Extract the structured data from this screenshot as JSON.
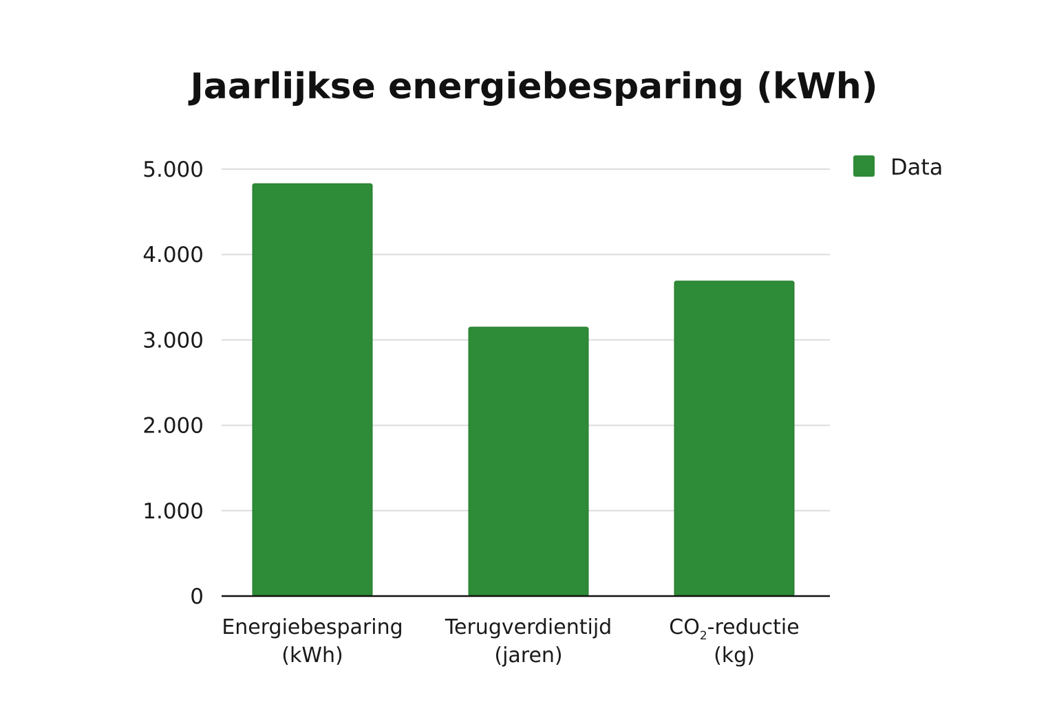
{
  "chart_data": {
    "type": "bar",
    "title": "Jaarlijkse energiebesparing (kWh)",
    "xlabel": "",
    "ylabel": "",
    "ylim": [
      0,
      5000
    ],
    "yticks": [
      {
        "value": 0,
        "label": "0"
      },
      {
        "value": 1000,
        "label": "1.000"
      },
      {
        "value": 2000,
        "label": "2.000"
      },
      {
        "value": 3000,
        "label": "3.000"
      },
      {
        "value": 4000,
        "label": "4.000"
      },
      {
        "value": 5000,
        "label": "5.000"
      }
    ],
    "grid": true,
    "categories": [
      {
        "lines": [
          "Energiebesparing",
          "(kWh)"
        ]
      },
      {
        "lines": [
          "Terugverdientijd",
          "(jaren)"
        ]
      },
      {
        "lines": [
          {
            "main": "CO",
            "sub": "2",
            "rest": "-reductie"
          },
          "(kg)"
        ]
      }
    ],
    "series": [
      {
        "name": "Data",
        "color": "#2e8b37",
        "values": [
          4830,
          3150,
          3690
        ]
      }
    ],
    "legend": {
      "position": "top-right",
      "label": "Data"
    }
  }
}
